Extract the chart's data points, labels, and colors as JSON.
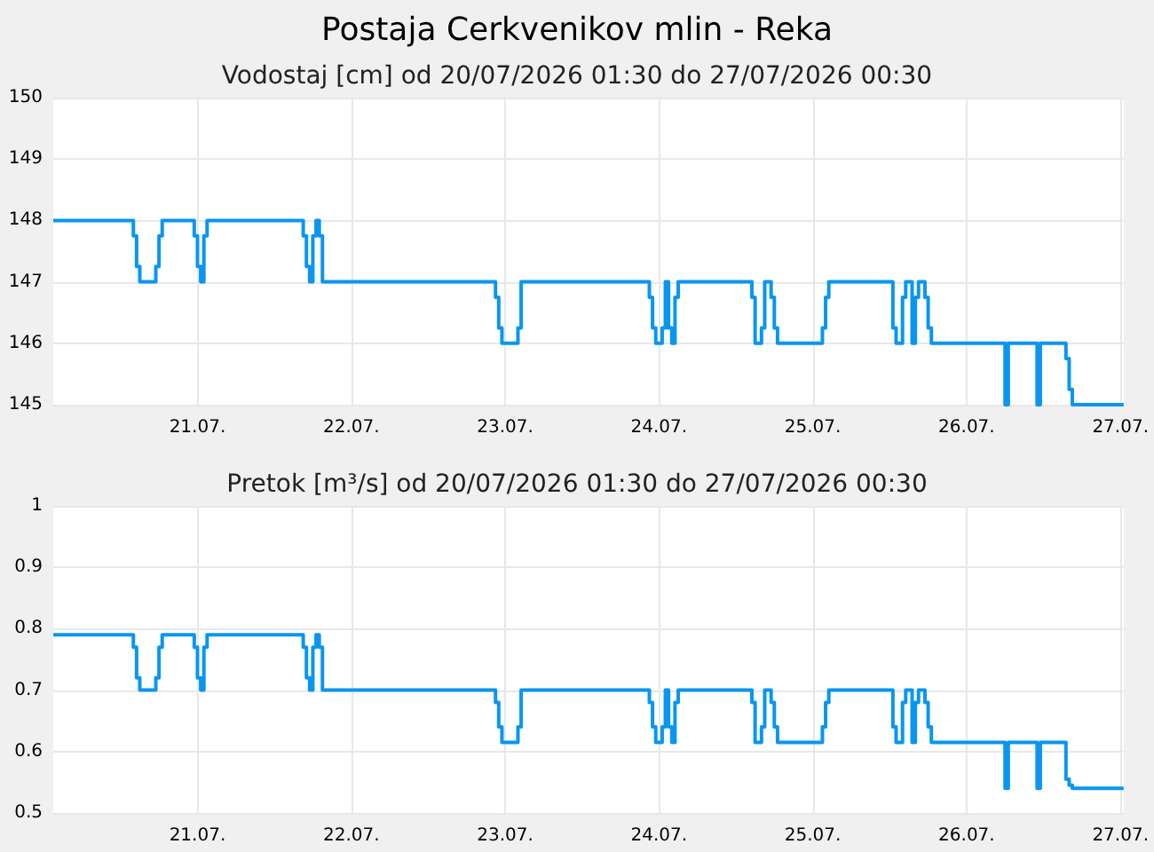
{
  "chart_data": [
    {
      "type": "step",
      "title": "Postaja Cerkvenikov mlin - Reka",
      "subtitle": "Vodostaj [cm] od 20/07/2026 01:30 do 27/07/2026 00:30",
      "x": [
        "2026-07-20T01:30",
        "2026-07-20T14:00",
        "2026-07-20T14:30",
        "2026-07-20T15:00",
        "2026-07-20T17:30",
        "2026-07-20T18:00",
        "2026-07-20T18:30",
        "2026-07-20T23:30",
        "2026-07-21T00:00",
        "2026-07-21T00:30",
        "2026-07-21T01:00",
        "2026-07-21T01:30",
        "2026-07-21T16:30",
        "2026-07-21T17:00",
        "2026-07-21T17:30",
        "2026-07-21T18:00",
        "2026-07-21T18:30",
        "2026-07-21T19:00",
        "2026-07-21T19:30",
        "2026-07-22T22:30",
        "2026-07-22T23:00",
        "2026-07-22T23:30",
        "2026-07-23T02:00",
        "2026-07-23T02:30",
        "2026-07-23T22:30",
        "2026-07-23T23:00",
        "2026-07-23T23:30",
        "2026-07-24T00:30",
        "2026-07-24T01:00",
        "2026-07-24T01:30",
        "2026-07-24T02:00",
        "2026-07-24T02:30",
        "2026-07-24T03:00",
        "2026-07-24T14:30",
        "2026-07-24T15:00",
        "2026-07-24T16:00",
        "2026-07-24T16:30",
        "2026-07-24T17:30",
        "2026-07-24T18:00",
        "2026-07-24T18:30",
        "2026-07-25T01:30",
        "2026-07-25T02:00",
        "2026-07-25T02:30",
        "2026-07-25T12:30",
        "2026-07-25T13:00",
        "2026-07-25T14:00",
        "2026-07-25T14:30",
        "2026-07-25T15:30",
        "2026-07-25T16:00",
        "2026-07-25T16:30",
        "2026-07-25T17:30",
        "2026-07-25T18:00",
        "2026-07-25T18:30",
        "2026-07-26T06:00",
        "2026-07-26T06:30",
        "2026-07-26T11:00",
        "2026-07-26T11:30",
        "2026-07-26T15:30",
        "2026-07-26T16:00",
        "2026-07-26T16:30",
        "2026-07-27T00:30"
      ],
      "series": [
        {
          "color": "#0a96f0",
          "values": [
            148,
            147.75,
            147.25,
            147,
            147.25,
            147.75,
            148,
            147.75,
            147.25,
            147,
            147.75,
            148,
            147.75,
            147.25,
            147,
            147.75,
            148,
            147.75,
            147,
            146.75,
            146.25,
            146,
            146.25,
            147,
            146.75,
            146.25,
            146,
            146.25,
            147,
            146.25,
            146,
            146.75,
            147,
            146.75,
            146,
            146.25,
            147,
            146.75,
            146.25,
            146,
            146.25,
            146.75,
            147,
            146.25,
            146,
            146.75,
            147,
            146,
            146.75,
            147,
            146.75,
            146.25,
            146,
            145,
            146,
            145,
            146,
            145.75,
            145.25,
            145,
            145
          ]
        }
      ],
      "xlim": [
        "2026-07-20T01:30",
        "2026-07-27T00:30"
      ],
      "xticks": [
        {
          "value": "2026-07-21",
          "label": "21.07."
        },
        {
          "value": "2026-07-22",
          "label": "22.07."
        },
        {
          "value": "2026-07-23",
          "label": "23.07."
        },
        {
          "value": "2026-07-24",
          "label": "24.07."
        },
        {
          "value": "2026-07-25",
          "label": "25.07."
        },
        {
          "value": "2026-07-26",
          "label": "26.07."
        },
        {
          "value": "2026-07-27",
          "label": "27.07."
        }
      ],
      "ylim": [
        145,
        150
      ],
      "yticks": [
        145,
        146,
        147,
        148,
        149,
        150
      ],
      "grid": true
    },
    {
      "type": "step",
      "subtitle": "Pretok [m³/s] od 20/07/2026 01:30 do 27/07/2026 00:30",
      "x": [
        "2026-07-20T01:30",
        "2026-07-20T14:00",
        "2026-07-20T14:30",
        "2026-07-20T15:00",
        "2026-07-20T17:30",
        "2026-07-20T18:00",
        "2026-07-20T18:30",
        "2026-07-20T23:30",
        "2026-07-21T00:00",
        "2026-07-21T00:30",
        "2026-07-21T01:00",
        "2026-07-21T01:30",
        "2026-07-21T16:30",
        "2026-07-21T17:00",
        "2026-07-21T17:30",
        "2026-07-21T18:00",
        "2026-07-21T18:30",
        "2026-07-21T19:00",
        "2026-07-21T19:30",
        "2026-07-22T22:30",
        "2026-07-22T23:00",
        "2026-07-22T23:30",
        "2026-07-23T02:00",
        "2026-07-23T02:30",
        "2026-07-23T22:30",
        "2026-07-23T23:00",
        "2026-07-23T23:30",
        "2026-07-24T00:30",
        "2026-07-24T01:00",
        "2026-07-24T01:30",
        "2026-07-24T02:00",
        "2026-07-24T02:30",
        "2026-07-24T03:00",
        "2026-07-24T14:30",
        "2026-07-24T15:00",
        "2026-07-24T16:00",
        "2026-07-24T16:30",
        "2026-07-24T17:30",
        "2026-07-24T18:00",
        "2026-07-24T18:30",
        "2026-07-25T01:30",
        "2026-07-25T02:00",
        "2026-07-25T02:30",
        "2026-07-25T12:30",
        "2026-07-25T13:00",
        "2026-07-25T14:00",
        "2026-07-25T14:30",
        "2026-07-25T15:30",
        "2026-07-25T16:00",
        "2026-07-25T16:30",
        "2026-07-25T17:30",
        "2026-07-25T18:00",
        "2026-07-25T18:30",
        "2026-07-26T06:00",
        "2026-07-26T06:30",
        "2026-07-26T11:00",
        "2026-07-26T11:30",
        "2026-07-26T15:30",
        "2026-07-26T16:00",
        "2026-07-26T16:30",
        "2026-07-27T00:30"
      ],
      "series": [
        {
          "color": "#0a96f0",
          "values": [
            0.79,
            0.77,
            0.72,
            0.7,
            0.72,
            0.77,
            0.79,
            0.77,
            0.72,
            0.7,
            0.77,
            0.79,
            0.77,
            0.72,
            0.7,
            0.77,
            0.79,
            0.77,
            0.7,
            0.68,
            0.64,
            0.615,
            0.64,
            0.7,
            0.68,
            0.64,
            0.615,
            0.64,
            0.7,
            0.64,
            0.615,
            0.68,
            0.7,
            0.68,
            0.615,
            0.64,
            0.7,
            0.68,
            0.64,
            0.615,
            0.64,
            0.68,
            0.7,
            0.64,
            0.615,
            0.68,
            0.7,
            0.615,
            0.68,
            0.7,
            0.68,
            0.64,
            0.615,
            0.54,
            0.615,
            0.54,
            0.615,
            0.555,
            0.545,
            0.54,
            0.54
          ]
        }
      ],
      "xlim": [
        "2026-07-20T01:30",
        "2026-07-27T00:30"
      ],
      "xticks": [
        {
          "value": "2026-07-21",
          "label": "21.07."
        },
        {
          "value": "2026-07-22",
          "label": "22.07."
        },
        {
          "value": "2026-07-23",
          "label": "23.07."
        },
        {
          "value": "2026-07-24",
          "label": "24.07."
        },
        {
          "value": "2026-07-25",
          "label": "25.07."
        },
        {
          "value": "2026-07-26",
          "label": "26.07."
        },
        {
          "value": "2026-07-27",
          "label": "27.07."
        }
      ],
      "ylim": [
        0.5,
        1
      ],
      "yticks": [
        0.5,
        0.6,
        0.7,
        0.8,
        0.9,
        1
      ],
      "grid": true
    }
  ]
}
